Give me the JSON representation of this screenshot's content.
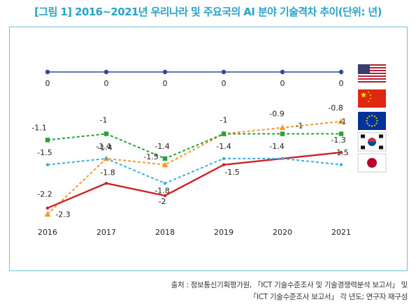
{
  "title": "[그림 1] 2016~2021년 우리나라 및 주요국의 AI 분야 기술격차 추이(단위: 년)",
  "source": {
    "line1": "출처 : 정보통신기획평가원, 「ICT 기술수준조사 및 기술경쟁력분석 보고서」 및",
    "line2": "「ICT 기술수준조사 보고서」 각 년도; 연구자 재구성"
  },
  "chart_data": {
    "type": "line",
    "categories": [
      "2016",
      "2017",
      "2018",
      "2019",
      "2020",
      "2021"
    ],
    "ylim": [
      -2.4,
      0
    ],
    "grid": false,
    "legend": "right (flags)",
    "series": [
      {
        "key": "us",
        "flag": "us-flag",
        "color": "#2f4a9c",
        "dash": "solid",
        "marker": "circle",
        "values": [
          0,
          0,
          0,
          0,
          0,
          0
        ],
        "labels": [
          "0",
          "0",
          "0",
          "0",
          "0",
          "0"
        ]
      },
      {
        "key": "cn",
        "flag": "china-flag",
        "color": "#f39a2c",
        "dash": "dashed",
        "marker": "triangle",
        "values": [
          -2.3,
          -1.4,
          -1.5,
          -1.0,
          -0.9,
          -0.8
        ],
        "labels": [
          "-2.3",
          "-1.4",
          "-1.5",
          "",
          "-0.9",
          "-0.8"
        ]
      },
      {
        "key": "eu",
        "flag": "eu-flag",
        "color": "#23a33a",
        "dash": "dashed",
        "marker": "square",
        "values": [
          -1.1,
          -1.0,
          -1.4,
          -1.0,
          -1.0,
          -1.0
        ],
        "labels": [
          "-1.1",
          "-1",
          "-1.4",
          "-1",
          "-1",
          "-1"
        ]
      },
      {
        "key": "kr",
        "flag": "korea-flag",
        "color": "#cc2229",
        "dash": "solid",
        "marker": "none",
        "values": [
          -2.2,
          -1.8,
          -2.0,
          -1.5,
          -1.4,
          -1.3
        ],
        "labels": [
          "-2.2",
          "-1.8",
          "-2",
          "-1.5",
          "-1.4",
          "-1.3"
        ]
      },
      {
        "key": "jp",
        "flag": "japan-flag",
        "color": "#3aaee0",
        "dash": "dashed",
        "marker": "none",
        "values": [
          -1.5,
          -1.4,
          -1.8,
          -1.4,
          -1.4,
          -1.5
        ],
        "labels": [
          "-1.5",
          "-1.4",
          "-1.8",
          "-1.4",
          "",
          "-1.5"
        ]
      }
    ]
  }
}
